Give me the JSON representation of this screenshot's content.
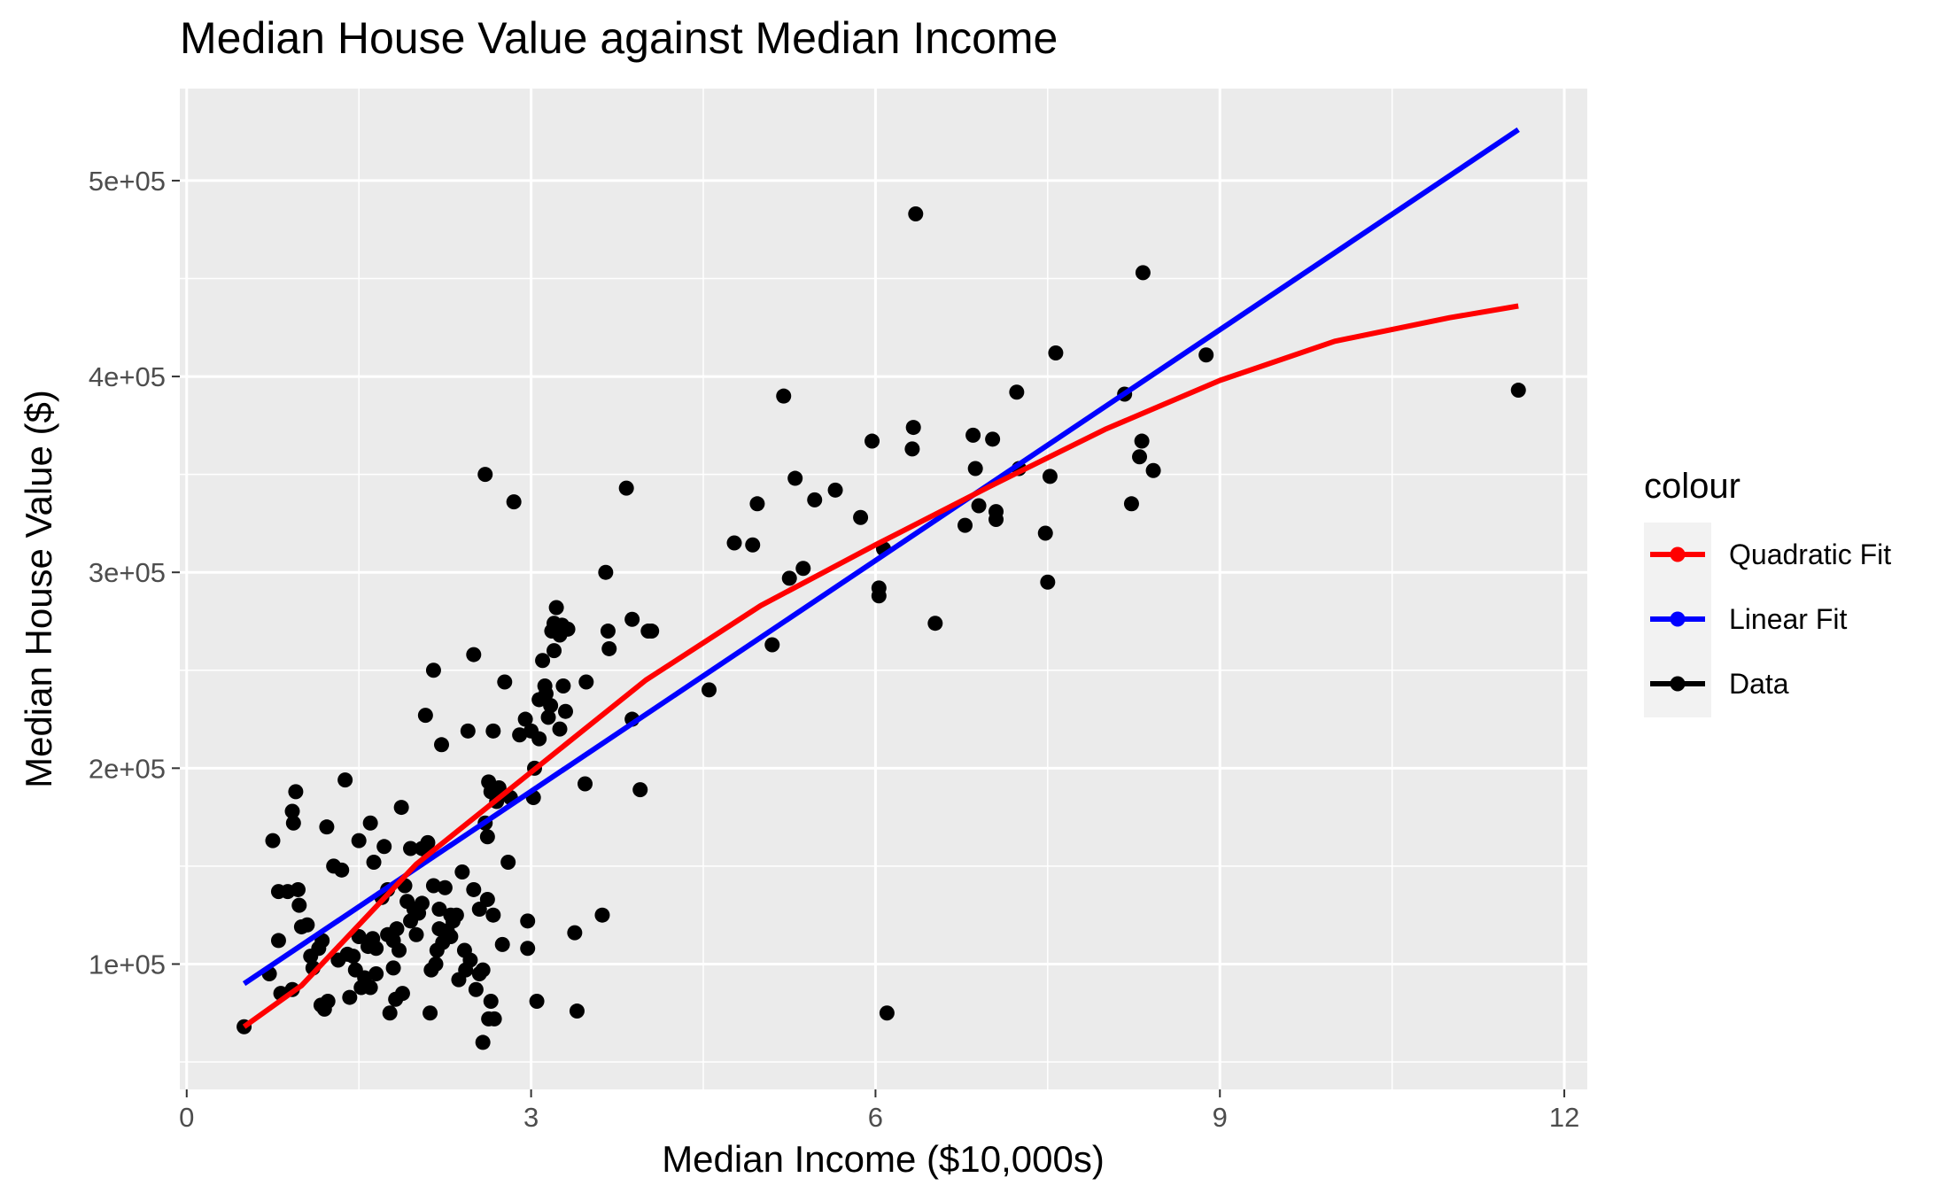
{
  "chart_data": {
    "type": "scatter",
    "title": "Median House Value against Median Income",
    "xlabel": "Median Income ($10,000s)",
    "ylabel": "Median House Value ($)",
    "xlim": [
      -0.06,
      12.2
    ],
    "ylim": [
      36000,
      547000
    ],
    "x_ticks": [
      0,
      3,
      6,
      9,
      12
    ],
    "x_tick_labels": [
      "0",
      "3",
      "6",
      "9",
      "12"
    ],
    "y_ticks": [
      100000,
      200000,
      300000,
      400000,
      500000
    ],
    "y_tick_labels": [
      "1e+05",
      "2e+05",
      "3e+05",
      "4e+05",
      "5e+05"
    ],
    "grid": true,
    "legend": {
      "title": "colour",
      "position": "right",
      "entries": [
        {
          "label": "Quadratic Fit",
          "color": "#ff0000"
        },
        {
          "label": "Linear Fit",
          "color": "#0000ff"
        },
        {
          "label": "Data",
          "color": "#000000"
        }
      ]
    },
    "series": [
      {
        "name": "Data",
        "kind": "points",
        "color": "#000000",
        "points": [
          [
            0.5,
            68000
          ],
          [
            0.72,
            95000
          ],
          [
            0.75,
            163000
          ],
          [
            0.8,
            112000
          ],
          [
            0.8,
            137000
          ],
          [
            0.82,
            85000
          ],
          [
            0.88,
            137000
          ],
          [
            0.92,
            87000
          ],
          [
            0.92,
            178000
          ],
          [
            0.93,
            172000
          ],
          [
            0.95,
            188000
          ],
          [
            0.97,
            138000
          ],
          [
            0.98,
            130000
          ],
          [
            1.0,
            119000
          ],
          [
            1.05,
            120000
          ],
          [
            1.08,
            104000
          ],
          [
            1.1,
            98000
          ],
          [
            1.15,
            108000
          ],
          [
            1.18,
            112000
          ],
          [
            1.17,
            79000
          ],
          [
            1.2,
            77000
          ],
          [
            1.22,
            170000
          ],
          [
            1.23,
            81000
          ],
          [
            1.28,
            150000
          ],
          [
            1.32,
            102000
          ],
          [
            1.35,
            148000
          ],
          [
            1.38,
            194000
          ],
          [
            1.4,
            105000
          ],
          [
            1.42,
            83000
          ],
          [
            1.45,
            104000
          ],
          [
            1.47,
            97000
          ],
          [
            1.5,
            163000
          ],
          [
            1.5,
            114000
          ],
          [
            1.52,
            88000
          ],
          [
            1.55,
            93000
          ],
          [
            1.58,
            109000
          ],
          [
            1.6,
            172000
          ],
          [
            1.6,
            88000
          ],
          [
            1.62,
            113000
          ],
          [
            1.63,
            152000
          ],
          [
            1.65,
            108000
          ],
          [
            1.65,
            95000
          ],
          [
            1.7,
            134000
          ],
          [
            1.72,
            160000
          ],
          [
            1.75,
            138000
          ],
          [
            1.75,
            115000
          ],
          [
            1.77,
            75000
          ],
          [
            1.8,
            98000
          ],
          [
            1.8,
            112000
          ],
          [
            1.82,
            82000
          ],
          [
            1.83,
            118000
          ],
          [
            1.85,
            107000
          ],
          [
            1.87,
            180000
          ],
          [
            1.88,
            85000
          ],
          [
            1.9,
            140000
          ],
          [
            1.92,
            132000
          ],
          [
            1.95,
            159000
          ],
          [
            1.95,
            122000
          ],
          [
            1.98,
            128000
          ],
          [
            2.0,
            115000
          ],
          [
            2.02,
            126000
          ],
          [
            2.05,
            131000
          ],
          [
            2.05,
            159000
          ],
          [
            2.08,
            227000
          ],
          [
            2.1,
            157000
          ],
          [
            2.1,
            162000
          ],
          [
            2.12,
            75000
          ],
          [
            2.13,
            97000
          ],
          [
            2.15,
            250000
          ],
          [
            2.15,
            140000
          ],
          [
            2.17,
            100000
          ],
          [
            2.18,
            107000
          ],
          [
            2.2,
            118000
          ],
          [
            2.2,
            128000
          ],
          [
            2.22,
            212000
          ],
          [
            2.23,
            111000
          ],
          [
            2.25,
            139000
          ],
          [
            2.27,
            117000
          ],
          [
            2.3,
            114000
          ],
          [
            2.3,
            125000
          ],
          [
            2.32,
            122000
          ],
          [
            2.35,
            125000
          ],
          [
            2.37,
            92000
          ],
          [
            2.4,
            147000
          ],
          [
            2.42,
            107000
          ],
          [
            2.43,
            97000
          ],
          [
            2.45,
            219000
          ],
          [
            2.47,
            102000
          ],
          [
            2.5,
            138000
          ],
          [
            2.5,
            258000
          ],
          [
            2.52,
            87000
          ],
          [
            2.55,
            95000
          ],
          [
            2.55,
            128000
          ],
          [
            2.58,
            60000
          ],
          [
            2.58,
            97000
          ],
          [
            2.6,
            172000
          ],
          [
            2.6,
            350000
          ],
          [
            2.62,
            133000
          ],
          [
            2.62,
            165000
          ],
          [
            2.63,
            193000
          ],
          [
            2.63,
            72000
          ],
          [
            2.65,
            81000
          ],
          [
            2.65,
            188000
          ],
          [
            2.67,
            125000
          ],
          [
            2.67,
            219000
          ],
          [
            2.68,
            72000
          ],
          [
            2.7,
            183000
          ],
          [
            2.72,
            190000
          ],
          [
            2.75,
            110000
          ],
          [
            2.77,
            244000
          ],
          [
            2.8,
            152000
          ],
          [
            2.82,
            185000
          ],
          [
            2.85,
            336000
          ],
          [
            2.9,
            217000
          ],
          [
            2.95,
            225000
          ],
          [
            2.97,
            122000
          ],
          [
            2.97,
            108000
          ],
          [
            3.0,
            219000
          ],
          [
            3.02,
            185000
          ],
          [
            3.03,
            200000
          ],
          [
            3.05,
            81000
          ],
          [
            3.07,
            215000
          ],
          [
            3.07,
            235000
          ],
          [
            3.1,
            255000
          ],
          [
            3.12,
            242000
          ],
          [
            3.13,
            238000
          ],
          [
            3.15,
            226000
          ],
          [
            3.17,
            232000
          ],
          [
            3.18,
            270000
          ],
          [
            3.2,
            260000
          ],
          [
            3.2,
            274000
          ],
          [
            3.22,
            282000
          ],
          [
            3.25,
            268000
          ],
          [
            3.25,
            220000
          ],
          [
            3.27,
            273000
          ],
          [
            3.28,
            242000
          ],
          [
            3.3,
            229000
          ],
          [
            3.32,
            271000
          ],
          [
            3.38,
            116000
          ],
          [
            3.4,
            76000
          ],
          [
            3.47,
            192000
          ],
          [
            3.48,
            244000
          ],
          [
            3.62,
            125000
          ],
          [
            3.65,
            300000
          ],
          [
            3.67,
            270000
          ],
          [
            3.68,
            261000
          ],
          [
            3.83,
            343000
          ],
          [
            3.88,
            276000
          ],
          [
            3.88,
            225000
          ],
          [
            3.95,
            189000
          ],
          [
            4.02,
            270000
          ],
          [
            4.05,
            270000
          ],
          [
            4.55,
            240000
          ],
          [
            4.77,
            315000
          ],
          [
            4.93,
            314000
          ],
          [
            4.97,
            335000
          ],
          [
            5.1,
            263000
          ],
          [
            5.2,
            390000
          ],
          [
            5.25,
            297000
          ],
          [
            5.3,
            348000
          ],
          [
            5.37,
            302000
          ],
          [
            5.47,
            337000
          ],
          [
            5.65,
            342000
          ],
          [
            5.87,
            328000
          ],
          [
            5.97,
            367000
          ],
          [
            6.03,
            292000
          ],
          [
            6.03,
            288000
          ],
          [
            6.07,
            312000
          ],
          [
            6.1,
            75000
          ],
          [
            6.32,
            363000
          ],
          [
            6.33,
            374000
          ],
          [
            6.35,
            483000
          ],
          [
            6.52,
            274000
          ],
          [
            6.78,
            324000
          ],
          [
            6.85,
            370000
          ],
          [
            6.87,
            353000
          ],
          [
            6.9,
            334000
          ],
          [
            7.02,
            368000
          ],
          [
            7.05,
            331000
          ],
          [
            7.05,
            327000
          ],
          [
            7.23,
            392000
          ],
          [
            7.25,
            353000
          ],
          [
            7.48,
            320000
          ],
          [
            7.5,
            295000
          ],
          [
            7.52,
            349000
          ],
          [
            7.57,
            412000
          ],
          [
            8.17,
            391000
          ],
          [
            8.23,
            335000
          ],
          [
            8.3,
            359000
          ],
          [
            8.32,
            367000
          ],
          [
            8.33,
            453000
          ],
          [
            8.42,
            352000
          ],
          [
            8.88,
            411000
          ],
          [
            11.6,
            393000
          ]
        ]
      },
      {
        "name": "Linear Fit",
        "kind": "line",
        "color": "#0000ff",
        "x": [
          0.5,
          11.6
        ],
        "y": [
          90000,
          526000
        ]
      },
      {
        "name": "Quadratic Fit",
        "kind": "line",
        "color": "#ff0000",
        "x": [
          0.5,
          1.0,
          2.0,
          3.0,
          4.0,
          5.0,
          6.0,
          7.0,
          8.0,
          9.0,
          10.0,
          11.0,
          11.6
        ],
        "y": [
          68000,
          89000,
          151000,
          198000,
          245000,
          283000,
          314000,
          344000,
          373000,
          398000,
          418000,
          430000,
          436000
        ]
      }
    ]
  }
}
